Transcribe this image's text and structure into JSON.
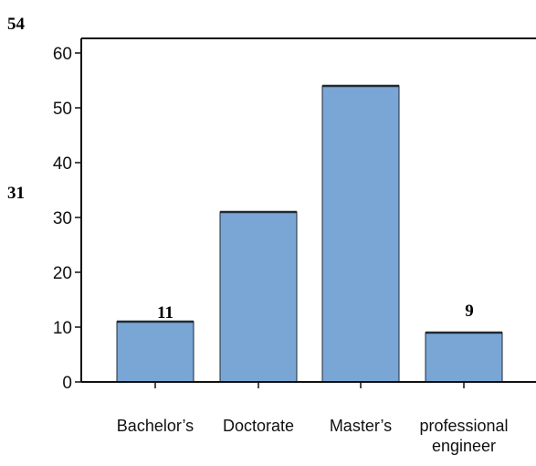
{
  "chart_data": {
    "type": "bar",
    "categories": [
      "Bachelor’s",
      "Doctorate",
      "Master’s",
      "professional engineer"
    ],
    "values": [
      11,
      31,
      54,
      9
    ],
    "data_labels": [
      "11",
      "31",
      "54",
      "9"
    ],
    "title": "",
    "xlabel": "",
    "ylabel": "",
    "ylim": [
      0,
      60
    ],
    "yticks": [
      0,
      10,
      20,
      30,
      40,
      50,
      60
    ],
    "grid": false,
    "bar_color": "#7aa6d6",
    "bar_top_color": "#1f2a33"
  }
}
